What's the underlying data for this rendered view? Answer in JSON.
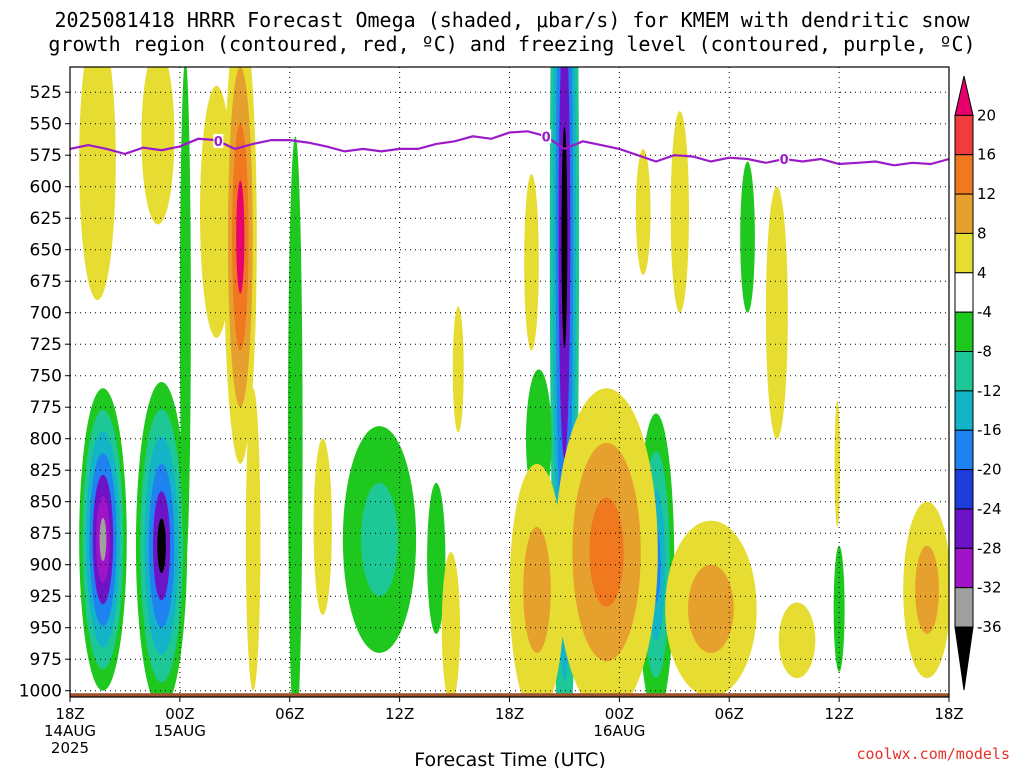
{
  "title_lines": [
    "2025081418 HRRR Forecast Omega (shaded, μbar/s) for KMEM with dendritic snow",
    "growth region (contoured, red, ºC) and freezing level (contoured, purple, ºC)"
  ],
  "credit": "coolwx.com/models",
  "chart_data": {
    "type": "time-height",
    "title": "2025081418 HRRR Forecast Omega (shaded, μbar/s) for KMEM with dendritic snow growth region (contoured, red, ºC) and freezing level (contoured, purple, ºC)",
    "xlabel": "Forecast Time (UTC)",
    "ylabel": "",
    "x_range_hours": [
      0,
      48
    ],
    "y_range_mb": [
      505,
      1005
    ],
    "y_scale": "linear, reversed",
    "grid": true,
    "y_ticks": [
      525,
      550,
      575,
      600,
      625,
      650,
      675,
      700,
      725,
      750,
      775,
      800,
      825,
      850,
      875,
      900,
      925,
      950,
      975,
      1000
    ],
    "x_ticks": [
      {
        "hour": 0,
        "lines": [
          "18Z",
          "14AUG",
          "2025"
        ]
      },
      {
        "hour": 6,
        "lines": [
          "00Z",
          "15AUG"
        ]
      },
      {
        "hour": 12,
        "lines": [
          "06Z"
        ]
      },
      {
        "hour": 18,
        "lines": [
          "12Z"
        ]
      },
      {
        "hour": 24,
        "lines": [
          "18Z"
        ]
      },
      {
        "hour": 30,
        "lines": [
          "00Z",
          "16AUG"
        ]
      },
      {
        "hour": 36,
        "lines": [
          "06Z"
        ]
      },
      {
        "hour": 42,
        "lines": [
          "12Z"
        ]
      },
      {
        "hour": 48,
        "lines": [
          "18Z"
        ]
      }
    ],
    "colorbar": {
      "labels": [
        "20",
        "16",
        "12",
        "8",
        "4",
        "-4",
        "-8",
        "-12",
        "-16",
        "-20",
        "-24",
        "-28",
        "-32",
        "-36"
      ],
      "colors": [
        "#e8006e",
        "#f03c3c",
        "#f0781e",
        "#e6a02d",
        "#e6dc32",
        "#ffffff",
        "#1ec81e",
        "#1ec896",
        "#14b4c8",
        "#1e82f0",
        "#1e3cdc",
        "#6e14c8",
        "#a014c8",
        "#a0a0a0",
        "#000000"
      ]
    },
    "freezing_level": {
      "label": "0",
      "color": "#9b1bc8",
      "series": [
        [
          0,
          570.0
        ],
        [
          1.0,
          567.0
        ],
        [
          2.0,
          570.0
        ],
        [
          3.0,
          574.0
        ],
        [
          4.0,
          569.0
        ],
        [
          5.0,
          571.0
        ],
        [
          6.0,
          568.0
        ],
        [
          7.0,
          562.0
        ],
        [
          8.0,
          563.0
        ],
        [
          9.0,
          570.0
        ],
        [
          10.0,
          566.0
        ],
        [
          11.0,
          563.0
        ],
        [
          12.0,
          563.0
        ],
        [
          13.0,
          565.0
        ],
        [
          14.0,
          568.0
        ],
        [
          15.0,
          572.0
        ],
        [
          16.0,
          570.0
        ],
        [
          17.0,
          572.0
        ],
        [
          18.0,
          570.0
        ],
        [
          19.0,
          570.0
        ],
        [
          20.0,
          566.0
        ],
        [
          21.0,
          564.0
        ],
        [
          22.0,
          560.0
        ],
        [
          23.0,
          562.0
        ],
        [
          24.0,
          557.0
        ],
        [
          25.0,
          556.0
        ],
        [
          26.0,
          560.0
        ],
        [
          27.0,
          570.0
        ],
        [
          28.0,
          564.0
        ],
        [
          29.0,
          567.0
        ],
        [
          30.0,
          570.0
        ],
        [
          31.0,
          575.0
        ],
        [
          32.0,
          580.0
        ],
        [
          33.0,
          575.0
        ],
        [
          34.0,
          576.0
        ],
        [
          35.0,
          580.0
        ],
        [
          36.0,
          577.0
        ],
        [
          37.0,
          578.0
        ],
        [
          38.0,
          581.0
        ],
        [
          39.0,
          578.0
        ],
        [
          40.0,
          580.0
        ],
        [
          41.0,
          578.0
        ],
        [
          42.0,
          582.0
        ],
        [
          43.0,
          581.0
        ],
        [
          44.0,
          580.0
        ],
        [
          45.0,
          583.0
        ],
        [
          46.0,
          581.0
        ],
        [
          47.0,
          582.0
        ],
        [
          48.0,
          578.0
        ]
      ]
    },
    "surface_color": "#a0522d",
    "omega_regions": [
      {
        "x": 1.8,
        "p": 880,
        "rx": 1.3,
        "ry": 120,
        "levels": [
          "#1ec81e",
          "#1ec896",
          "#14b4c8",
          "#1e82f0",
          "#6e14c8",
          "#a014c8",
          "#a0a0a0"
        ]
      },
      {
        "x": 5.0,
        "p": 885,
        "rx": 1.4,
        "ry": 130,
        "levels": [
          "#1ec81e",
          "#1ec896",
          "#14b4c8",
          "#1e82f0",
          "#6e14c8",
          "#000000"
        ]
      },
      {
        "x": 27.0,
        "p": 640,
        "rx": 0.8,
        "ry": 440,
        "levels": [
          "#1ec896",
          "#14b4c8",
          "#1e82f0",
          "#6e14c8",
          "#000000"
        ]
      },
      {
        "x": 32.0,
        "p": 900,
        "rx": 1.0,
        "ry": 120,
        "levels": [
          "#1ec81e",
          "#1ec896",
          "#14b4c8",
          "#1e82f0"
        ]
      },
      {
        "x": 20.0,
        "p": 895,
        "rx": 0.5,
        "ry": 60,
        "levels": [
          "#1ec81e"
        ]
      },
      {
        "x": 16.9,
        "p": 880,
        "rx": 2.0,
        "ry": 90,
        "levels": [
          "#1ec81e",
          "#1ec896"
        ]
      },
      {
        "x": 25.6,
        "p": 800,
        "rx": 0.7,
        "ry": 55,
        "levels": [
          "#1ec81e"
        ]
      },
      {
        "x": 37.0,
        "p": 640,
        "rx": 0.4,
        "ry": 60,
        "levels": [
          "#1ec81e"
        ]
      },
      {
        "x": 42.0,
        "p": 935,
        "rx": 0.3,
        "ry": 50,
        "levels": [
          "#1ec81e"
        ]
      },
      {
        "x": 12.3,
        "p": 800,
        "rx": 0.4,
        "ry": 240,
        "levels": [
          "#1ec81e"
        ]
      },
      {
        "x": 6.3,
        "p": 700,
        "rx": 0.3,
        "ry": 200,
        "levels": [
          "#1ec81e"
        ]
      },
      {
        "x": 8.0,
        "p": 620,
        "rx": 0.9,
        "ry": 100,
        "levels": [
          "#e6dc32"
        ]
      },
      {
        "x": 9.3,
        "p": 640,
        "rx": 0.9,
        "ry": 180,
        "levels": [
          "#e6dc32",
          "#e6a02d",
          "#f0781e",
          "#e8006e"
        ]
      },
      {
        "x": 29.3,
        "p": 890,
        "rx": 2.8,
        "ry": 130,
        "levels": [
          "#e6dc32",
          "#e6a02d",
          "#f0781e"
        ]
      },
      {
        "x": 25.5,
        "p": 920,
        "rx": 1.5,
        "ry": 100,
        "levels": [
          "#e6dc32",
          "#e6a02d"
        ]
      },
      {
        "x": 35.0,
        "p": 935,
        "rx": 2.5,
        "ry": 70,
        "levels": [
          "#e6dc32",
          "#e6a02d"
        ]
      },
      {
        "x": 46.8,
        "p": 920,
        "rx": 1.3,
        "ry": 70,
        "levels": [
          "#e6dc32",
          "#e6a02d"
        ]
      },
      {
        "x": 1.5,
        "p": 580,
        "rx": 1.0,
        "ry": 110,
        "levels": [
          "#e6dc32"
        ]
      },
      {
        "x": 4.8,
        "p": 560,
        "rx": 0.9,
        "ry": 70,
        "levels": [
          "#e6dc32"
        ]
      },
      {
        "x": 21.2,
        "p": 745,
        "rx": 0.3,
        "ry": 50,
        "levels": [
          "#e6dc32"
        ]
      },
      {
        "x": 25.2,
        "p": 660,
        "rx": 0.4,
        "ry": 70,
        "levels": [
          "#e6dc32"
        ]
      },
      {
        "x": 38.6,
        "p": 700,
        "rx": 0.6,
        "ry": 100,
        "levels": [
          "#e6dc32"
        ]
      },
      {
        "x": 20.8,
        "p": 950,
        "rx": 0.5,
        "ry": 60,
        "levels": [
          "#e6dc32"
        ]
      },
      {
        "x": 13.8,
        "p": 870,
        "rx": 0.5,
        "ry": 70,
        "levels": [
          "#e6dc32"
        ]
      },
      {
        "x": 10.0,
        "p": 880,
        "rx": 0.4,
        "ry": 120,
        "levels": [
          "#e6dc32"
        ]
      },
      {
        "x": 33.3,
        "p": 620,
        "rx": 0.5,
        "ry": 80,
        "levels": [
          "#e6dc32"
        ]
      },
      {
        "x": 31.3,
        "p": 620,
        "rx": 0.4,
        "ry": 50,
        "levels": [
          "#e6dc32"
        ]
      },
      {
        "x": 41.9,
        "p": 820,
        "rx": 0.15,
        "ry": 50,
        "levels": [
          "#e6dc32"
        ]
      },
      {
        "x": 39.7,
        "p": 960,
        "rx": 1.0,
        "ry": 30,
        "levels": [
          "#e6dc32"
        ]
      }
    ]
  },
  "axes": {
    "xlabel": "Forecast Time (UTC)"
  }
}
